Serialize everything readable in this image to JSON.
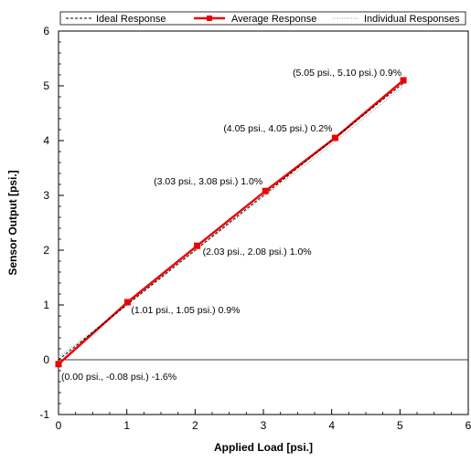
{
  "chart_data": {
    "type": "line",
    "xlabel": "Applied Load [psi.]",
    "ylabel": "Sensor Output [psi.]",
    "xlim": [
      0,
      6
    ],
    "ylim": [
      -1,
      6
    ],
    "x_ticks": [
      "0",
      "1",
      "2",
      "3",
      "4",
      "5",
      "6"
    ],
    "y_ticks": [
      "-1",
      "0",
      "1",
      "2",
      "3",
      "4",
      "5",
      "6"
    ],
    "grid": false,
    "legend_position": "top",
    "series": [
      {
        "name": "Ideal Response",
        "style": "dashed",
        "color": "#000000",
        "x": [
          0,
          5.05
        ],
        "y": [
          0,
          5.05
        ]
      },
      {
        "name": "Average Response",
        "style": "solid-square-markers",
        "color": "#ee0000",
        "x": [
          0.0,
          1.01,
          2.03,
          3.03,
          4.05,
          5.05
        ],
        "y": [
          -0.08,
          1.05,
          2.08,
          3.08,
          4.05,
          5.1
        ]
      },
      {
        "name": "Individual Responses",
        "style": "dotted",
        "color": "#999999",
        "x": [
          0.0,
          1.01,
          2.03,
          3.03,
          4.05,
          5.05
        ],
        "y": [
          0.05,
          1.01,
          2.02,
          3.0,
          3.98,
          5.0
        ]
      }
    ],
    "annotations": [
      "(0.00 psi., -0.08 psi.) -1.6%",
      "(1.01 psi., 1.05 psi.) 0.9%",
      "(2.03 psi., 2.08 psi.) 1.0%",
      "(3.03 psi., 3.08 psi.) 1.0%",
      "(4.05 psi., 4.05 psi.) 0.2%",
      "(5.05 psi., 5.10 psi.) 0.9%"
    ]
  }
}
